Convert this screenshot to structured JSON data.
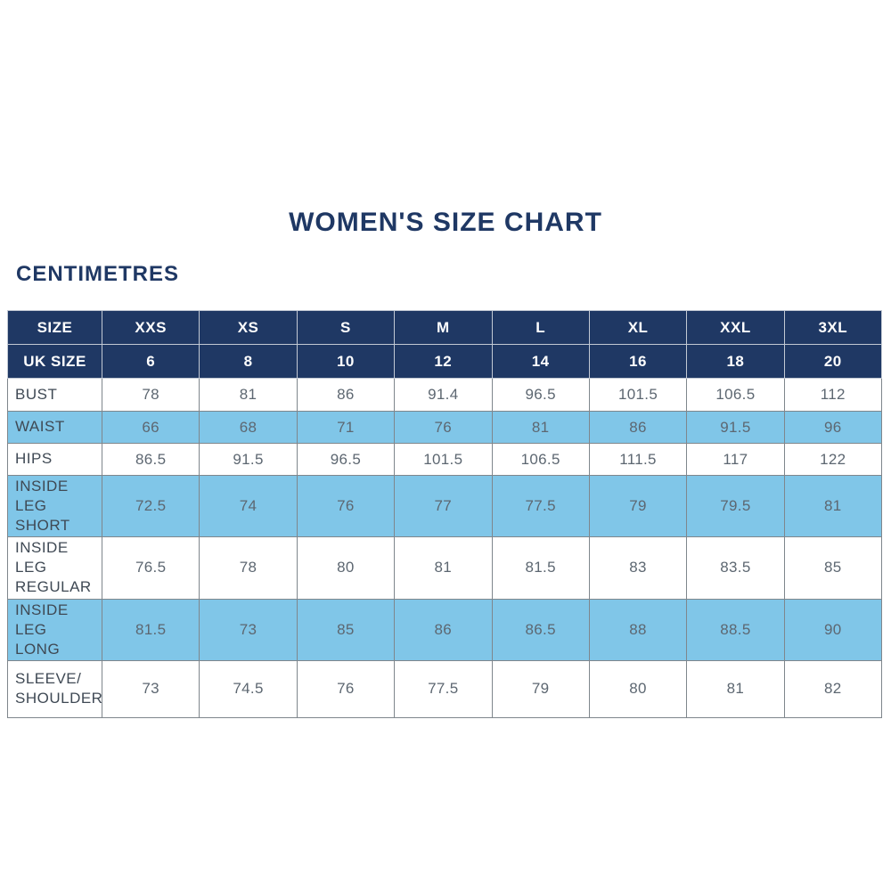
{
  "page": {
    "title": "WOMEN'S SIZE CHART",
    "unit_heading": "CENTIMETRES"
  },
  "colors": {
    "navy": "#1f3864",
    "light_blue": "#80c6e8",
    "border_gray": "#7f868c",
    "header_border": "#c2c9d4",
    "text_label": "#3f4954",
    "text_value": "#5d6771",
    "page_bg": "#ffffff"
  },
  "chart_data": {
    "type": "table",
    "title": "WOMEN'S SIZE CHART",
    "subtitle": "CENTIMETRES",
    "header_rows": [
      {
        "label": "SIZE",
        "values": [
          "XXS",
          "XS",
          "S",
          "M",
          "L",
          "XL",
          "XXL",
          "3XL"
        ]
      },
      {
        "label": "UK SIZE",
        "values": [
          "6",
          "8",
          "10",
          "12",
          "14",
          "16",
          "18",
          "20"
        ]
      }
    ],
    "rows": [
      {
        "label": "BUST",
        "values": [
          "78",
          "81",
          "86",
          "91.4",
          "96.5",
          "101.5",
          "106.5",
          "112"
        ]
      },
      {
        "label": "WAIST",
        "values": [
          "66",
          "68",
          "71",
          "76",
          "81",
          "86",
          "91.5",
          "96"
        ]
      },
      {
        "label": "HIPS",
        "values": [
          "86.5",
          "91.5",
          "96.5",
          "101.5",
          "106.5",
          "111.5",
          "117",
          "122"
        ]
      },
      {
        "label": "INSIDE LEG\nSHORT",
        "values": [
          "72.5",
          "74",
          "76",
          "77",
          "77.5",
          "79",
          "79.5",
          "81"
        ]
      },
      {
        "label": "INSIDE LEG\nREGULAR",
        "values": [
          "76.5",
          "78",
          "80",
          "81",
          "81.5",
          "83",
          "83.5",
          "85"
        ]
      },
      {
        "label": "INSIDE LEG\nLONG",
        "values": [
          "81.5",
          "73",
          "85",
          "86",
          "86.5",
          "88",
          "88.5",
          "90"
        ]
      },
      {
        "label": "SLEEVE/\nSHOULDER",
        "values": [
          "73",
          "74.5",
          "76",
          "77.5",
          "79",
          "80",
          "81",
          "82"
        ]
      }
    ]
  }
}
